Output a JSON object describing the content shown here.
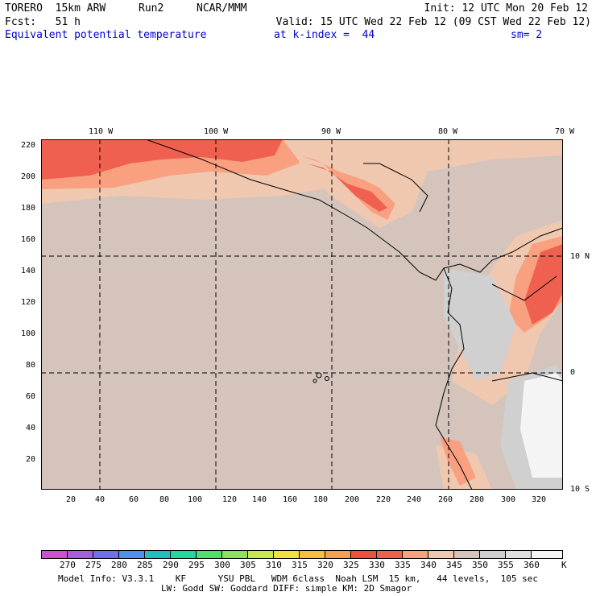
{
  "header": {
    "model": "TORERO  15km ARW",
    "run": "Run2",
    "org": "NCAR/MMM",
    "init": "Init: 12 UTC Mon 20 Feb 12",
    "fcst": "Fcst:   51 h",
    "valid": "Valid: 15 UTC Wed 22 Feb 12 (09 CST Wed 22 Feb 12)",
    "field": "Equivalent potential temperature",
    "level": "at k-index =  44",
    "smooth": "sm= 2"
  },
  "map": {
    "lon_labels": [
      "110 W",
      "100 W",
      "90 W",
      "80 W",
      "70 W"
    ],
    "lat_labels": [
      "10 N",
      "0",
      "10 S"
    ],
    "y_ticks": [
      "220",
      "200",
      "180",
      "160",
      "140",
      "120",
      "100",
      "80",
      "60",
      "40",
      "20"
    ],
    "x_ticks": [
      "20",
      "40",
      "60",
      "80",
      "100",
      "120",
      "140",
      "160",
      "180",
      "200",
      "220",
      "240",
      "260",
      "280",
      "300",
      "320"
    ]
  },
  "colorbar": {
    "colors": [
      "#d050d0",
      "#a060e0",
      "#7070ee",
      "#5090ee",
      "#20c0c0",
      "#20d8a0",
      "#50e070",
      "#90e060",
      "#c8e850",
      "#f0e040",
      "#f4c040",
      "#f8a050",
      "#f05040",
      "#f06050",
      "#f8a080",
      "#f0c8b0",
      "#d4c4bc",
      "#d0d0d0",
      "#e0e0e0",
      "#f4f4f4"
    ],
    "labels": [
      "270",
      "275",
      "280",
      "285",
      "290",
      "295",
      "300",
      "305",
      "310",
      "315",
      "320",
      "325",
      "330",
      "335",
      "340",
      "345",
      "350",
      "355",
      "360"
    ],
    "unit": "K"
  },
  "footer": {
    "line1": "Model Info: V3.3.1    KF      YSU PBL   WDM 6class  Noah LSM  15 km,   44 levels,  105 sec",
    "line2": "LW: Godd SW: Goddard DIFF: simple KM: 2D Smagor"
  }
}
